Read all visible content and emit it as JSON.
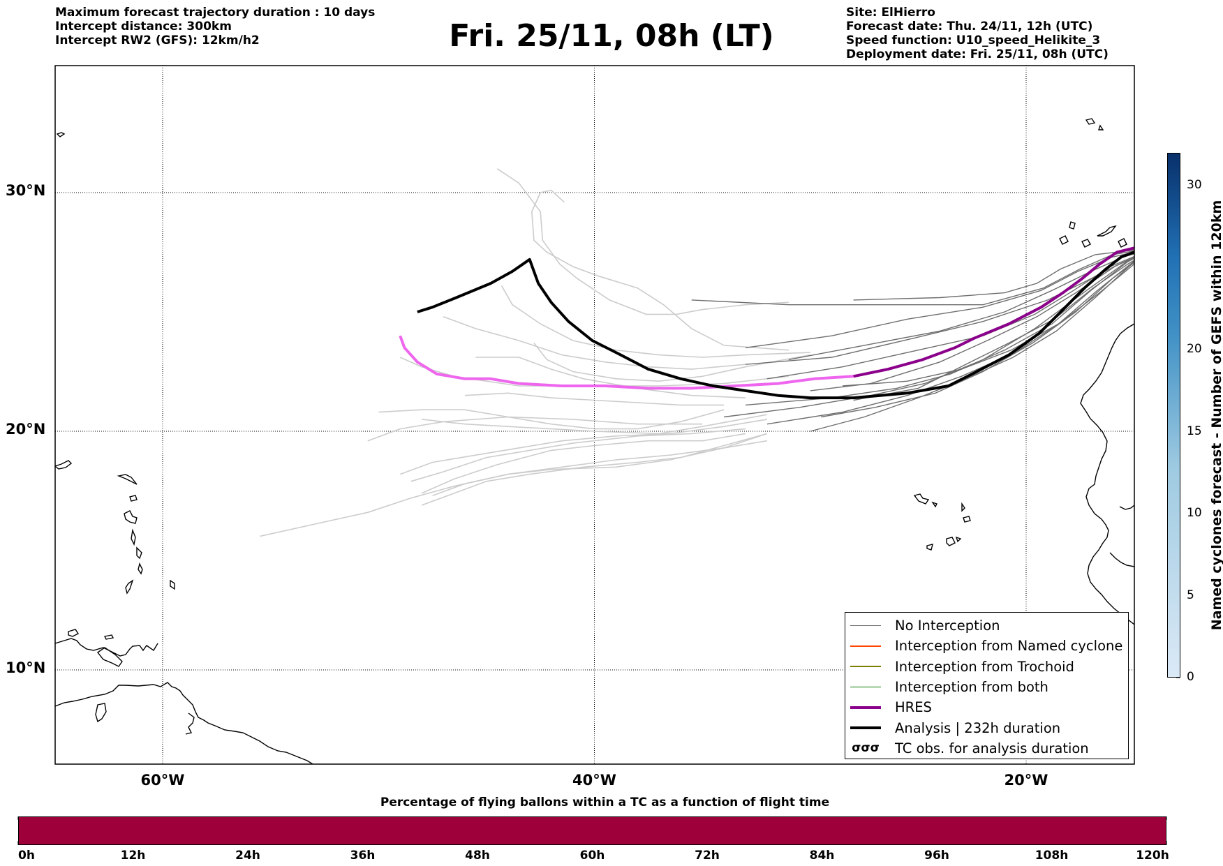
{
  "header": {
    "left": [
      "Maximum forecast trajectory duration : 10 days",
      "Intercept distance: 300km",
      "Intercept RW2 (GFS):  12km/h2"
    ],
    "title": "Fri. 25/11, 08h (LT)",
    "right": [
      "Site: ElHierro",
      "Forecast date: Thu. 24/11, 12h (UTC)",
      "Speed function: U10_speed_Helikite_3",
      "Deployment date: Fri. 25/11, 08h (UTC)"
    ]
  },
  "map": {
    "lon_range": [
      -65,
      15
    ],
    "lat_range": [
      5,
      34.3
    ],
    "lat_labels": [
      {
        "lat": 30,
        "text": "30°N"
      },
      {
        "lat": 20,
        "text": "20°N"
      },
      {
        "lat": 10,
        "text": "10°N"
      }
    ],
    "lon_labels": [
      {
        "lon": -60,
        "text": "60°W"
      },
      {
        "lon": -40,
        "text": "40°W"
      },
      {
        "lon": -20,
        "text": "20°W"
      }
    ],
    "colors": {
      "no_interception": "#6e6e6e",
      "named_cyclone": "#ff4500",
      "trochoid": "#808000",
      "both": "#007a00",
      "hres": "#8b008b",
      "hres_early": "#ee66ee",
      "analysis": "#000000",
      "faded": "#cccccc"
    },
    "analysis_track": [
      [
        -48.2,
        25.0
      ],
      [
        -47.5,
        25.2
      ],
      [
        -46.4,
        25.6
      ],
      [
        -44.8,
        26.2
      ],
      [
        -43.8,
        26.7
      ],
      [
        -43.0,
        27.2
      ],
      [
        -42.6,
        26.2
      ],
      [
        -42.0,
        25.4
      ],
      [
        -41.2,
        24.6
      ],
      [
        -40.1,
        23.8
      ],
      [
        -39.0,
        23.3
      ],
      [
        -37.5,
        22.6
      ],
      [
        -36.0,
        22.2
      ],
      [
        -34.5,
        21.9
      ],
      [
        -33.0,
        21.7
      ],
      [
        -31.5,
        21.5
      ],
      [
        -30.0,
        21.4
      ],
      [
        -28.0,
        21.4
      ],
      [
        -25.5,
        21.6
      ],
      [
        -23.6,
        21.9
      ],
      [
        -22.5,
        22.4
      ],
      [
        -20.8,
        23.2
      ],
      [
        -19.4,
        24.1
      ],
      [
        -18.4,
        25.0
      ],
      [
        -17.3,
        26.0
      ],
      [
        -16.3,
        26.8
      ],
      [
        -15.6,
        27.3
      ],
      [
        -15.0,
        27.5
      ],
      [
        -14.5,
        27.6
      ],
      [
        -14.0,
        27.7
      ]
    ],
    "hres_track": [
      [
        -49.0,
        24.0
      ],
      [
        -48.8,
        23.5
      ],
      [
        -48.2,
        22.9
      ],
      [
        -47.3,
        22.4
      ],
      [
        -46.0,
        22.2
      ],
      [
        -44.8,
        22.2
      ],
      [
        -43.5,
        22.0
      ],
      [
        -41.5,
        21.9
      ],
      [
        -39.5,
        21.9
      ],
      [
        -37.5,
        21.8
      ],
      [
        -35.5,
        21.8
      ],
      [
        -33.5,
        21.9
      ],
      [
        -31.5,
        22.0
      ],
      [
        -29.8,
        22.2
      ],
      [
        -28.0,
        22.3
      ],
      [
        -26.4,
        22.6
      ],
      [
        -24.8,
        23.0
      ],
      [
        -23.3,
        23.5
      ],
      [
        -22.4,
        23.9
      ],
      [
        -20.8,
        24.5
      ],
      [
        -19.3,
        25.2
      ],
      [
        -18.3,
        25.8
      ],
      [
        -17.4,
        26.4
      ],
      [
        -16.6,
        27.0
      ],
      [
        -15.8,
        27.5
      ],
      [
        -14.9,
        27.7
      ],
      [
        -14.0,
        27.7
      ]
    ],
    "hres_split_index": 14,
    "gefs_members": [
      [
        [
          -28.0,
          25.5
        ],
        [
          -24.0,
          25.6
        ],
        [
          -21.0,
          25.8
        ],
        [
          -19.5,
          26.2
        ],
        [
          -18.4,
          26.8
        ],
        [
          -16.8,
          27.4
        ],
        [
          -14.0,
          27.7
        ]
      ],
      [
        [
          -35.5,
          25.5
        ],
        [
          -31.0,
          25.3
        ],
        [
          -27.0,
          25.3
        ],
        [
          -22.0,
          25.3
        ],
        [
          -19.2,
          26.0
        ],
        [
          -17.5,
          26.8
        ],
        [
          -16.0,
          27.4
        ],
        [
          -14.0,
          27.7
        ]
      ],
      [
        [
          -33.0,
          23.5
        ],
        [
          -29.0,
          24.0
        ],
        [
          -25.5,
          24.7
        ],
        [
          -22.0,
          25.2
        ],
        [
          -19.3,
          25.9
        ],
        [
          -17.6,
          26.7
        ],
        [
          -16.0,
          27.3
        ],
        [
          -14.0,
          27.7
        ]
      ],
      [
        [
          -31.0,
          23.0
        ],
        [
          -27.5,
          23.6
        ],
        [
          -24.0,
          24.2
        ],
        [
          -21.0,
          25.0
        ],
        [
          -18.8,
          25.9
        ],
        [
          -17.0,
          26.7
        ],
        [
          -15.5,
          27.3
        ],
        [
          -14.0,
          27.7
        ]
      ],
      [
        [
          -33.0,
          22.8
        ],
        [
          -29.0,
          23.1
        ],
        [
          -25.2,
          23.9
        ],
        [
          -22.0,
          24.6
        ],
        [
          -19.0,
          25.5
        ],
        [
          -17.2,
          26.3
        ],
        [
          -15.7,
          27.0
        ],
        [
          -14.0,
          27.7
        ]
      ],
      [
        [
          -32.0,
          22.2
        ],
        [
          -28.5,
          22.7
        ],
        [
          -25.0,
          23.4
        ],
        [
          -22.0,
          24.0
        ],
        [
          -19.6,
          24.9
        ],
        [
          -17.8,
          25.9
        ],
        [
          -16.1,
          26.9
        ],
        [
          -14.0,
          27.7
        ]
      ],
      [
        [
          -30.0,
          21.7
        ],
        [
          -27.2,
          22.0
        ],
        [
          -24.0,
          22.9
        ],
        [
          -21.8,
          23.8
        ],
        [
          -19.5,
          24.8
        ],
        [
          -17.7,
          25.8
        ],
        [
          -15.9,
          26.9
        ],
        [
          -14.0,
          27.7
        ]
      ],
      [
        [
          -28.0,
          21.3
        ],
        [
          -25.0,
          21.8
        ],
        [
          -22.8,
          22.8
        ],
        [
          -20.8,
          23.7
        ],
        [
          -18.7,
          24.7
        ],
        [
          -16.9,
          26.0
        ],
        [
          -15.3,
          27.0
        ],
        [
          -14.0,
          27.7
        ]
      ],
      [
        [
          -33.0,
          21.1
        ],
        [
          -29.0,
          21.4
        ],
        [
          -26.0,
          21.8
        ],
        [
          -23.5,
          22.4
        ],
        [
          -21.0,
          23.4
        ],
        [
          -18.8,
          24.5
        ],
        [
          -17.0,
          25.9
        ],
        [
          -15.3,
          27.1
        ],
        [
          -14.0,
          27.7
        ]
      ],
      [
        [
          -34.0,
          20.6
        ],
        [
          -30.5,
          21.0
        ],
        [
          -27.2,
          21.5
        ],
        [
          -24.7,
          22.0
        ],
        [
          -22.0,
          23.0
        ],
        [
          -19.6,
          24.3
        ],
        [
          -17.2,
          25.9
        ],
        [
          -15.2,
          27.2
        ],
        [
          -14.0,
          27.7
        ]
      ],
      [
        [
          -32.0,
          20.3
        ],
        [
          -28.5,
          20.8
        ],
        [
          -25.5,
          21.5
        ],
        [
          -23.0,
          22.3
        ],
        [
          -20.5,
          23.3
        ],
        [
          -18.5,
          24.5
        ],
        [
          -16.7,
          25.9
        ],
        [
          -14.9,
          27.2
        ],
        [
          -14.0,
          27.7
        ]
      ],
      [
        [
          -30.0,
          20.0
        ],
        [
          -27.5,
          20.6
        ],
        [
          -25.0,
          21.4
        ],
        [
          -22.8,
          22.2
        ],
        [
          -20.6,
          23.1
        ],
        [
          -18.6,
          24.2
        ],
        [
          -16.8,
          25.6
        ],
        [
          -15.0,
          27.1
        ],
        [
          -14.0,
          27.7
        ]
      ],
      [
        [
          -29.5,
          20.6
        ],
        [
          -27.0,
          21.0
        ],
        [
          -24.2,
          21.6
        ],
        [
          -22.0,
          22.5
        ],
        [
          -19.7,
          23.7
        ],
        [
          -17.7,
          25.0
        ],
        [
          -16.0,
          26.4
        ],
        [
          -14.5,
          27.4
        ],
        [
          -14.0,
          27.7
        ]
      ],
      [
        [
          -28.5,
          21.9
        ],
        [
          -25.5,
          22.1
        ],
        [
          -23.0,
          22.6
        ],
        [
          -20.7,
          23.4
        ],
        [
          -18.5,
          24.5
        ],
        [
          -16.6,
          25.8
        ],
        [
          -15.0,
          27.0
        ],
        [
          -14.0,
          27.7
        ]
      ]
    ],
    "faded_members": [
      [
        [
          -44.5,
          31.0
        ],
        [
          -43.5,
          30.4
        ],
        [
          -42.5,
          29.2
        ],
        [
          -42.4,
          28.0
        ],
        [
          -41.6,
          27.0
        ],
        [
          -40.8,
          26.4
        ],
        [
          -39.3,
          25.5
        ],
        [
          -37.6,
          24.9
        ],
        [
          -36.2,
          24.9
        ],
        [
          -35.0,
          25.1
        ],
        [
          -33.0,
          25.3
        ],
        [
          -31.0,
          25.4
        ]
      ],
      [
        [
          -41.4,
          29.6
        ],
        [
          -42.0,
          30.1
        ],
        [
          -42.5,
          30.0
        ],
        [
          -42.9,
          29.2
        ],
        [
          -42.8,
          28.0
        ],
        [
          -42.2,
          27.5
        ],
        [
          -41.0,
          26.9
        ],
        [
          -39.8,
          26.5
        ],
        [
          -38.0,
          26.0
        ],
        [
          -36.8,
          25.3
        ],
        [
          -35.5,
          24.3
        ],
        [
          -34.0,
          23.6
        ],
        [
          -31.0,
          23.4
        ]
      ],
      [
        [
          -44.3,
          26.1
        ],
        [
          -43.8,
          25.3
        ],
        [
          -42.5,
          24.5
        ],
        [
          -41.0,
          23.8
        ],
        [
          -39.0,
          23.4
        ],
        [
          -37.0,
          23.2
        ],
        [
          -35.0,
          23.1
        ],
        [
          -33.0,
          23.2
        ],
        [
          -30.0,
          23.3
        ]
      ],
      [
        [
          -47.0,
          24.8
        ],
        [
          -45.5,
          24.3
        ],
        [
          -43.5,
          23.8
        ],
        [
          -41.5,
          23.2
        ],
        [
          -39.5,
          22.9
        ],
        [
          -37.5,
          22.7
        ],
        [
          -35.5,
          22.6
        ],
        [
          -33.0,
          22.8
        ]
      ],
      [
        [
          -42.8,
          23.7
        ],
        [
          -42.2,
          23.0
        ],
        [
          -41.0,
          22.5
        ],
        [
          -39.0,
          22.2
        ],
        [
          -37.0,
          22.1
        ],
        [
          -35.0,
          22.3
        ],
        [
          -33.0,
          22.7
        ],
        [
          -30.0,
          23.2
        ]
      ],
      [
        [
          -49.0,
          23.1
        ],
        [
          -48.0,
          22.7
        ],
        [
          -46.5,
          22.3
        ],
        [
          -45.0,
          22.1
        ],
        [
          -43.5,
          21.9
        ],
        [
          -42.0,
          21.9
        ],
        [
          -40.0,
          21.9
        ],
        [
          -37.0,
          21.9
        ],
        [
          -34.0,
          22.0
        ],
        [
          -31.0,
          22.3
        ]
      ],
      [
        [
          -45.5,
          23.1
        ],
        [
          -43.5,
          23.1
        ],
        [
          -42.0,
          22.6
        ],
        [
          -40.5,
          22.2
        ],
        [
          -38.0,
          21.8
        ],
        [
          -35.5,
          21.5
        ],
        [
          -33.0,
          21.4
        ]
      ],
      [
        [
          -46.0,
          21.5
        ],
        [
          -44.0,
          21.6
        ],
        [
          -42.0,
          21.4
        ],
        [
          -40.0,
          21.3
        ],
        [
          -38.0,
          21.2
        ],
        [
          -36.0,
          21.1
        ],
        [
          -34.0,
          21.1
        ]
      ],
      [
        [
          -50.0,
          20.8
        ],
        [
          -48.0,
          20.9
        ],
        [
          -46.0,
          20.9
        ],
        [
          -44.0,
          20.6
        ],
        [
          -42.0,
          20.3
        ],
        [
          -40.0,
          20.1
        ],
        [
          -38.0,
          20.1
        ],
        [
          -36.0,
          20.4
        ],
        [
          -34.0,
          20.9
        ]
      ],
      [
        [
          -48.0,
          20.5
        ],
        [
          -46.0,
          20.3
        ],
        [
          -44.0,
          20.2
        ],
        [
          -42.0,
          20.1
        ],
        [
          -40.0,
          20.0
        ],
        [
          -37.0,
          19.9
        ],
        [
          -35.0,
          20.2
        ],
        [
          -32.0,
          20.7
        ]
      ],
      [
        [
          -50.5,
          19.6
        ],
        [
          -49.0,
          20.1
        ],
        [
          -47.0,
          20.4
        ],
        [
          -44.0,
          20.6
        ],
        [
          -41.0,
          20.5
        ],
        [
          -38.0,
          20.3
        ],
        [
          -35.0,
          20.3
        ]
      ],
      [
        [
          -49.0,
          18.2
        ],
        [
          -47.5,
          18.7
        ],
        [
          -45.5,
          19.0
        ],
        [
          -43.5,
          19.3
        ],
        [
          -41.5,
          19.6
        ],
        [
          -39.0,
          19.8
        ],
        [
          -36.5,
          19.9
        ],
        [
          -34.0,
          20.2
        ],
        [
          -32.0,
          20.5
        ]
      ],
      [
        [
          -48.5,
          17.9
        ],
        [
          -47.0,
          18.3
        ],
        [
          -45.0,
          18.9
        ],
        [
          -43.0,
          19.2
        ],
        [
          -41.0,
          19.5
        ],
        [
          -38.0,
          19.8
        ],
        [
          -35.5,
          19.9
        ],
        [
          -33.0,
          20.1
        ]
      ],
      [
        [
          -48.0,
          17.4
        ],
        [
          -46.5,
          18.0
        ],
        [
          -44.5,
          18.6
        ],
        [
          -42.0,
          19.2
        ],
        [
          -40.0,
          19.4
        ],
        [
          -37.5,
          19.6
        ],
        [
          -35.0,
          19.6
        ],
        [
          -33.0,
          19.9
        ]
      ],
      [
        [
          -47.5,
          17.3
        ],
        [
          -46.0,
          17.8
        ],
        [
          -44.0,
          18.2
        ],
        [
          -41.5,
          18.5
        ],
        [
          -39.0,
          18.8
        ],
        [
          -36.5,
          19.0
        ],
        [
          -34.0,
          19.3
        ],
        [
          -32.0,
          19.6
        ]
      ],
      [
        [
          -48.0,
          16.9
        ],
        [
          -46.5,
          17.4
        ],
        [
          -45.0,
          17.9
        ],
        [
          -43.0,
          18.2
        ],
        [
          -40.5,
          18.5
        ],
        [
          -38.0,
          18.7
        ],
        [
          -36.0,
          18.9
        ],
        [
          -34.0,
          19.4
        ],
        [
          -32.0,
          19.9
        ]
      ],
      [
        [
          -55.5,
          15.6
        ],
        [
          -53.0,
          16.1
        ],
        [
          -50.5,
          16.6
        ],
        [
          -48.5,
          17.2
        ],
        [
          -46.5,
          17.7
        ],
        [
          -44.0,
          18.2
        ],
        [
          -42.0,
          18.4
        ],
        [
          -39.0,
          18.5
        ],
        [
          -36.5,
          18.8
        ],
        [
          -34.0,
          19.3
        ],
        [
          -32.0,
          19.9
        ]
      ]
    ]
  },
  "legend": {
    "items": [
      {
        "label": "No Interception",
        "swatch": "thin",
        "color_key": "no_interception"
      },
      {
        "label": "Interception from Named cyclone",
        "swatch": "thin",
        "color_key": "named_cyclone"
      },
      {
        "label": "Interception from Trochoid",
        "swatch": "thin",
        "color_key": "trochoid"
      },
      {
        "label": "Interception from both",
        "swatch": "thin",
        "color_key": "both"
      },
      {
        "label": "HRES",
        "swatch": "thick",
        "color_key": "hres"
      },
      {
        "label": "Analysis | 232h duration",
        "swatch": "thick",
        "color_key": "analysis"
      },
      {
        "label": "TC obs. for analysis duration",
        "swatch": "cyclone",
        "color_key": "analysis"
      }
    ]
  },
  "colorbar": {
    "label": "Named cyclones forecast - Number of GEFS within 120km",
    "range": [
      0,
      32
    ],
    "ticks": [
      0,
      5,
      10,
      15,
      20,
      30
    ],
    "color_low": "#dbe9f6",
    "color_high": "#08306b"
  },
  "progress_bar": {
    "title": "Percentage of flying ballons within a TC as a function of flight time",
    "color": "#9e003a",
    "tick_labels": [
      "0h",
      "12h",
      "24h",
      "36h",
      "48h",
      "60h",
      "72h",
      "84h",
      "96h",
      "108h",
      "120h"
    ],
    "minor_ticks": 40
  }
}
